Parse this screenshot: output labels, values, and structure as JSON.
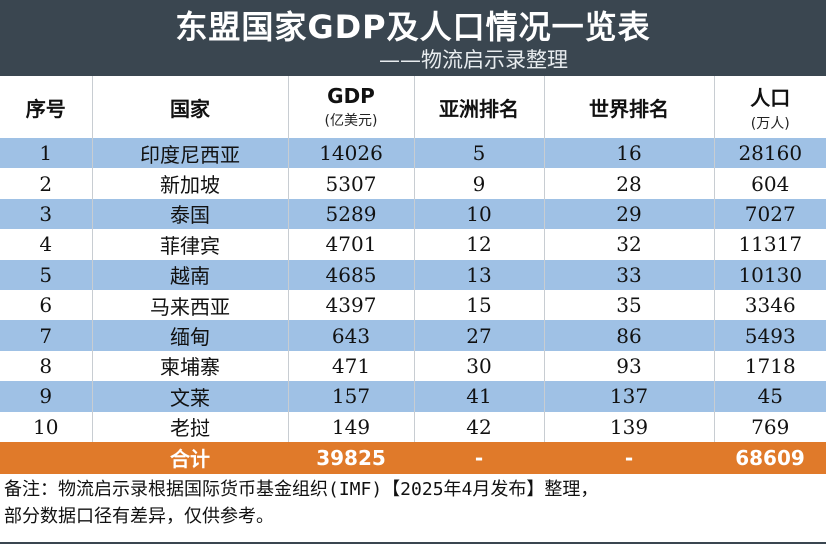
{
  "header": {
    "title": "东盟国家GDP及人口情况一览表",
    "subtitle": "——物流启示录整理"
  },
  "table": {
    "columns": [
      {
        "label": "序号",
        "unit": ""
      },
      {
        "label": "国家",
        "unit": ""
      },
      {
        "label": "GDP",
        "unit": "(亿美元)"
      },
      {
        "label": "亚洲排名",
        "unit": ""
      },
      {
        "label": "世界排名",
        "unit": ""
      },
      {
        "label": "人口",
        "unit": "(万人)"
      }
    ],
    "rows": [
      {
        "no": "1",
        "country": "印度尼西亚",
        "gdp": "14026",
        "asia": "5",
        "world": "16",
        "pop": "28160"
      },
      {
        "no": "2",
        "country": "新加坡",
        "gdp": "5307",
        "asia": "9",
        "world": "28",
        "pop": "604"
      },
      {
        "no": "3",
        "country": "泰国",
        "gdp": "5289",
        "asia": "10",
        "world": "29",
        "pop": "7027"
      },
      {
        "no": "4",
        "country": "菲律宾",
        "gdp": "4701",
        "asia": "12",
        "world": "32",
        "pop": "11317"
      },
      {
        "no": "5",
        "country": "越南",
        "gdp": "4685",
        "asia": "13",
        "world": "33",
        "pop": "10130"
      },
      {
        "no": "6",
        "country": "马来西亚",
        "gdp": "4397",
        "asia": "15",
        "world": "35",
        "pop": "3346"
      },
      {
        "no": "7",
        "country": "缅甸",
        "gdp": "643",
        "asia": "27",
        "world": "86",
        "pop": "5493"
      },
      {
        "no": "8",
        "country": "柬埔寨",
        "gdp": "471",
        "asia": "30",
        "world": "93",
        "pop": "1718"
      },
      {
        "no": "9",
        "country": "文莱",
        "gdp": "157",
        "asia": "41",
        "world": "137",
        "pop": "45"
      },
      {
        "no": "10",
        "country": "老挝",
        "gdp": "149",
        "asia": "42",
        "world": "139",
        "pop": "769"
      }
    ],
    "total": {
      "label": "合计",
      "gdp": "39825",
      "asia": "-",
      "world": "-",
      "pop": "68609"
    }
  },
  "note": {
    "line1": "备注：物流启示录根据国际货币基金组织(IMF)【2025年4月发布】整理，",
    "line2": "部分数据口径有差异，仅供参考。"
  },
  "colors": {
    "header_bg": "#3a4650",
    "row_blue": "#9fc1e5",
    "total_orange": "#e07a2a"
  }
}
